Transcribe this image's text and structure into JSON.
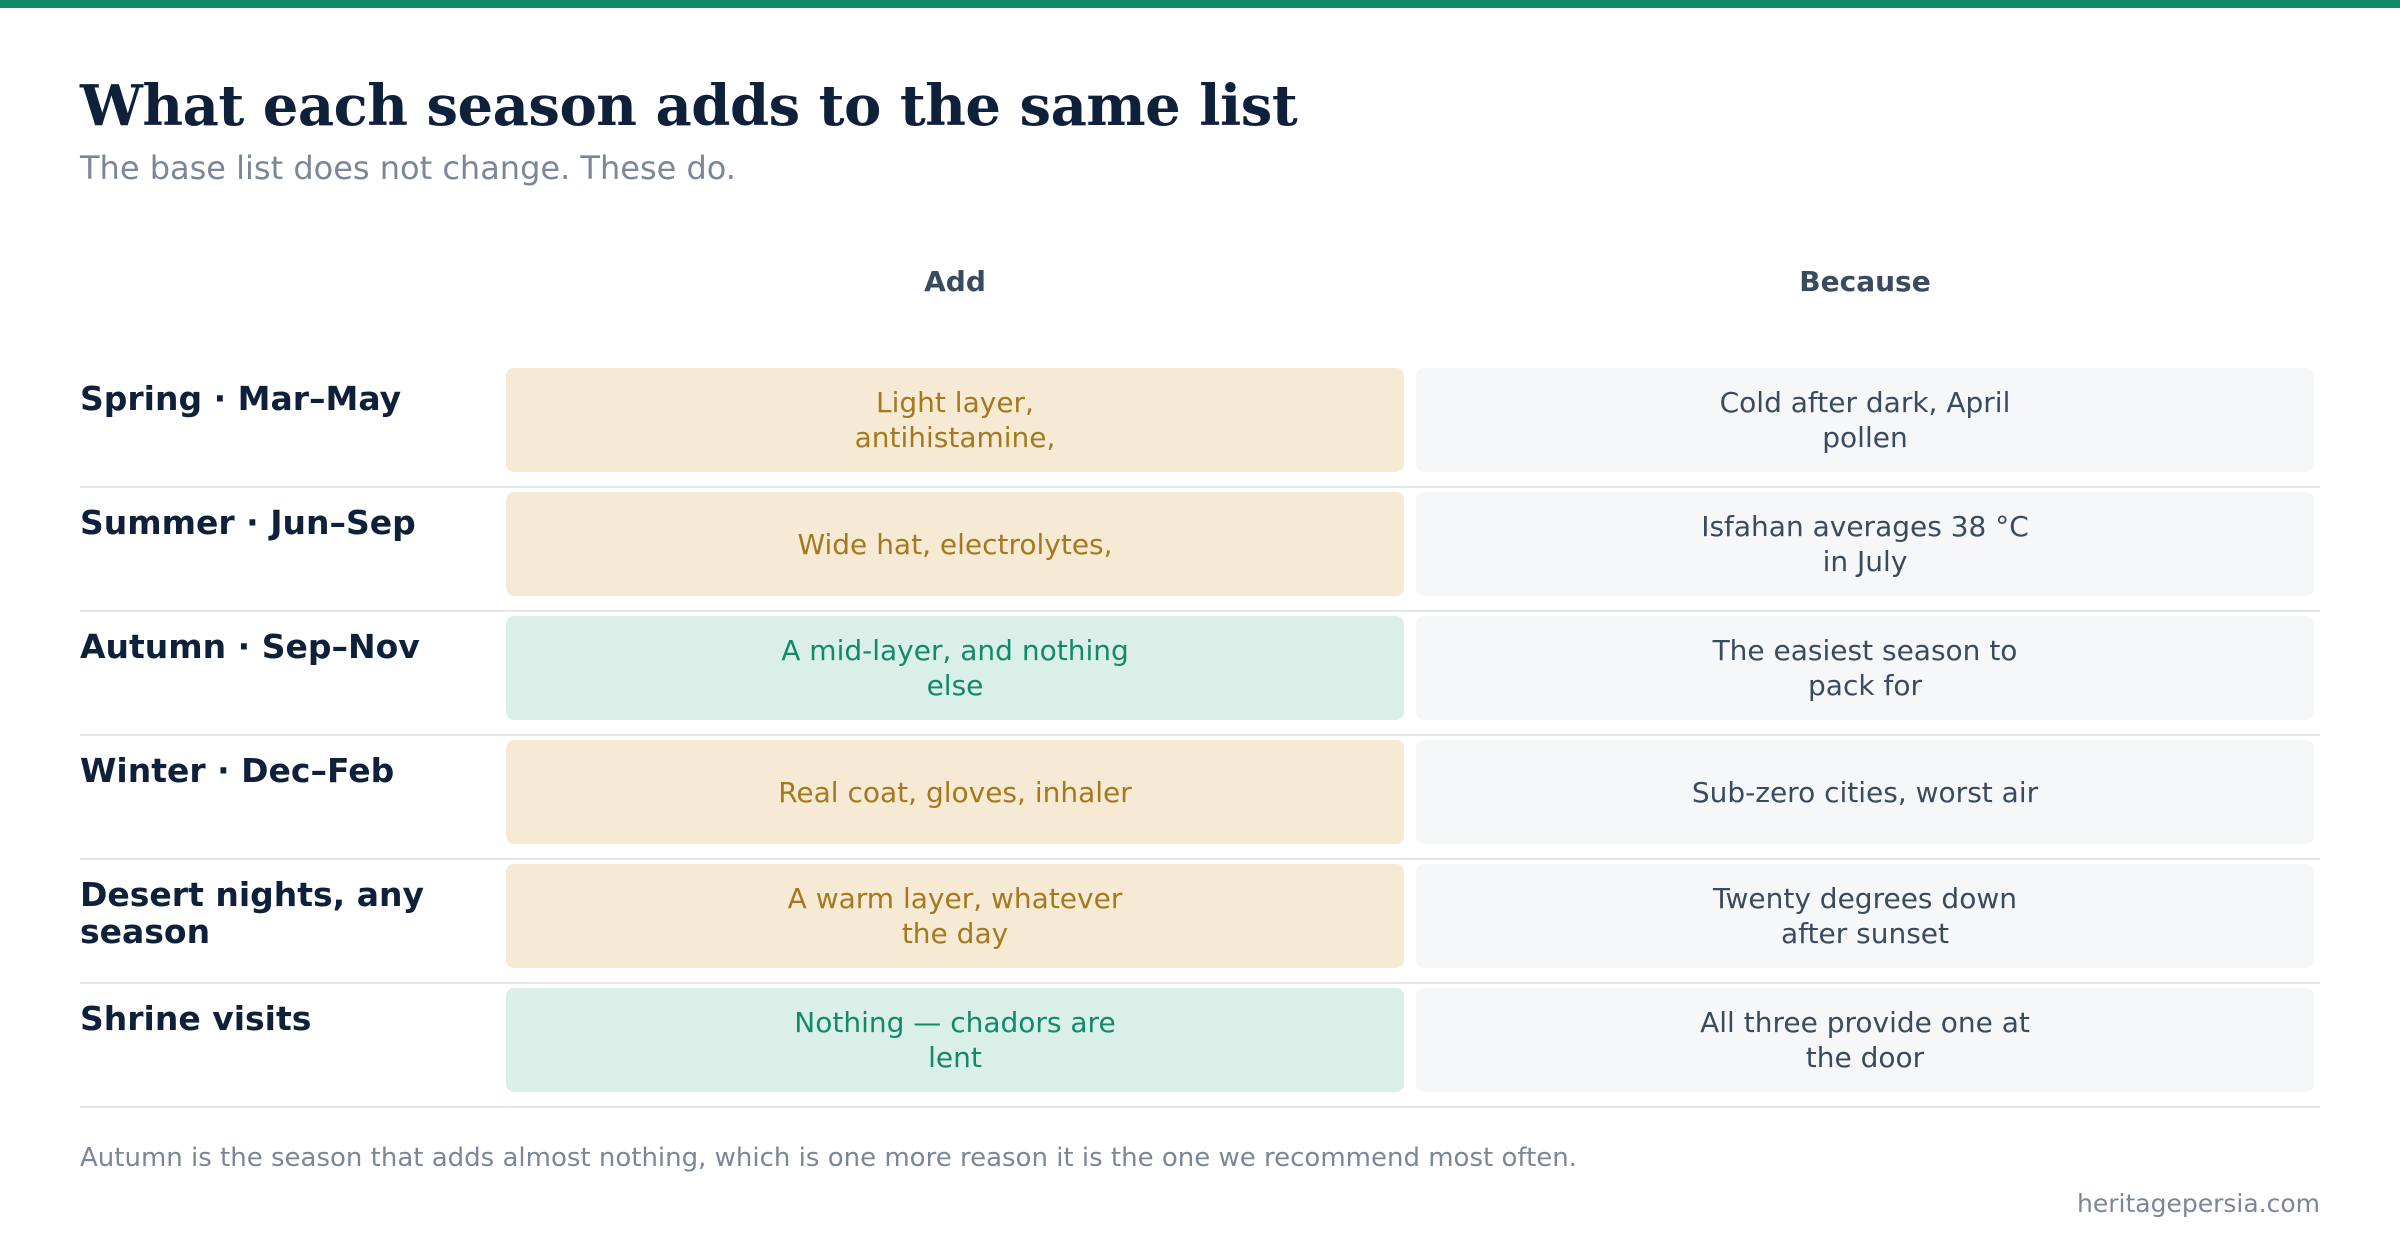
{
  "page": {
    "title": "What each season adds to the same list",
    "subtitle": "The base list does not change. These do."
  },
  "table": {
    "headers": {
      "add": "Add",
      "because": "Because"
    },
    "rows": [
      {
        "label": "Spring · Mar–May",
        "add": "Light layer, antihistamine,",
        "because": "Cold after dark, April pollen",
        "tone": "amber"
      },
      {
        "label": "Summer · Jun–Sep",
        "add": "Wide hat, electrolytes,",
        "because": "Isfahan averages 38 °C in July",
        "tone": "amber"
      },
      {
        "label": "Autumn · Sep–Nov",
        "add": "A mid-layer, and nothing else",
        "because": "The easiest season to pack for",
        "tone": "green"
      },
      {
        "label": "Winter · Dec–Feb",
        "add": "Real coat, gloves, inhaler",
        "because": "Sub-zero cities, worst air",
        "tone": "amber"
      },
      {
        "label": "Desert nights, any season",
        "add": "A warm layer, whatever the day",
        "because": "Twenty degrees down after sunset",
        "tone": "amber"
      },
      {
        "label": "Shrine visits",
        "add": "Nothing — chadors are lent",
        "because": "All three provide one at the door",
        "tone": "green"
      }
    ]
  },
  "footer": {
    "note": "Autumn is the season that adds almost nothing, which is one more reason it is the one we recommend most often.",
    "site": "heritagepersia.com"
  },
  "colors": {
    "accent": "#138a6a",
    "amber_bg": "#f6ead5",
    "amber_text": "#a57a1e",
    "green_bg": "#daefe7",
    "green_text": "#128a6a"
  }
}
